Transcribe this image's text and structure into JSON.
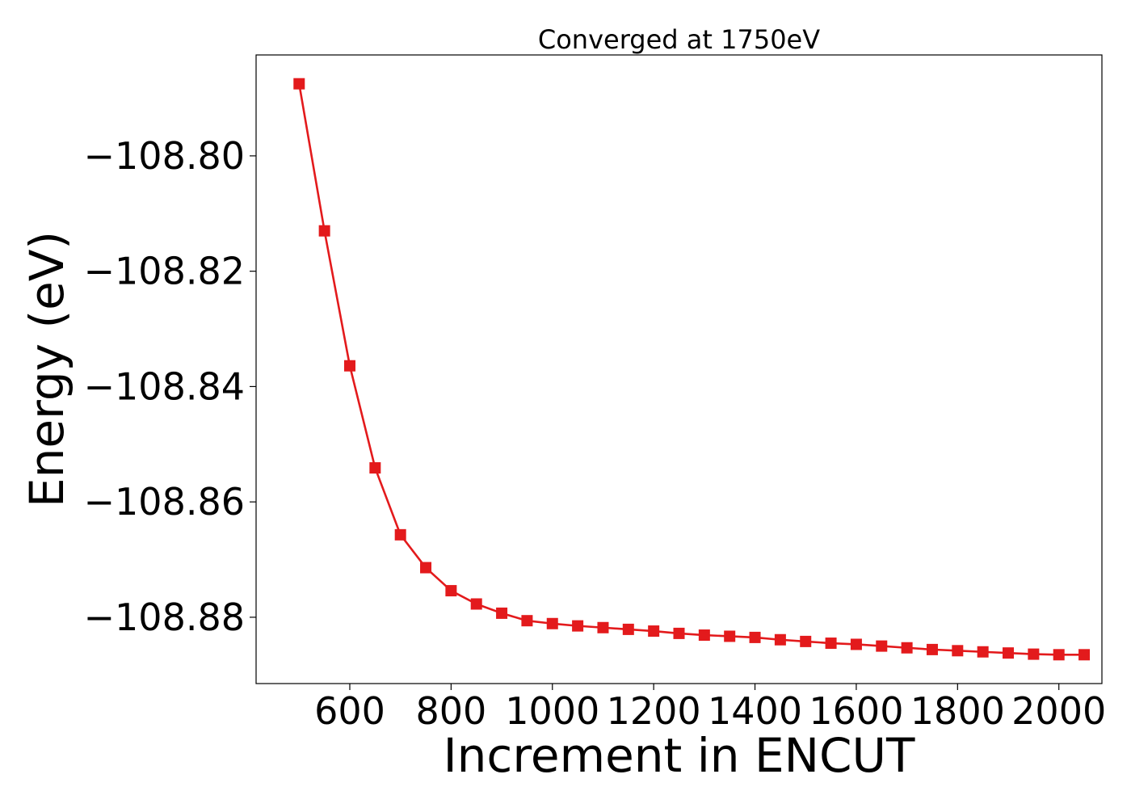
{
  "chart_data": {
    "type": "line",
    "title": "Converged at 1750eV",
    "xlabel": "Increment in ENCUT",
    "ylabel": "Energy (eV)",
    "xlim": [
      415,
      2085
    ],
    "ylim": [
      -108.8915,
      -108.7825
    ],
    "x_ticks": [
      600,
      800,
      1000,
      1200,
      1400,
      1600,
      1800,
      2000
    ],
    "x_tick_labels": [
      "600",
      "800",
      "1000",
      "1200",
      "1400",
      "1600",
      "1800",
      "2000"
    ],
    "y_ticks": [
      -108.8,
      -108.82,
      -108.84,
      -108.86,
      -108.88
    ],
    "y_tick_labels": [
      "−108.80",
      "−108.82",
      "−108.84",
      "−108.86",
      "−108.88"
    ],
    "grid": false,
    "series": [
      {
        "color": "#e31a1c",
        "marker": "square",
        "x": [
          500,
          550,
          600,
          650,
          700,
          750,
          800,
          850,
          900,
          950,
          1000,
          1050,
          1100,
          1150,
          1200,
          1250,
          1300,
          1350,
          1400,
          1450,
          1500,
          1550,
          1600,
          1650,
          1700,
          1750,
          1800,
          1850,
          1900,
          1950,
          2000,
          2050
        ],
        "y": [
          -108.7875,
          -108.813,
          -108.8364,
          -108.8541,
          -108.8657,
          -108.8714,
          -108.8754,
          -108.8777,
          -108.8793,
          -108.8806,
          -108.8811,
          -108.8815,
          -108.8818,
          -108.8821,
          -108.8824,
          -108.8828,
          -108.8831,
          -108.8833,
          -108.8835,
          -108.8839,
          -108.8842,
          -108.8845,
          -108.8847,
          -108.885,
          -108.8853,
          -108.8856,
          -108.8858,
          -108.886,
          -108.8862,
          -108.8864,
          -108.8865,
          -108.8865
        ]
      }
    ]
  }
}
